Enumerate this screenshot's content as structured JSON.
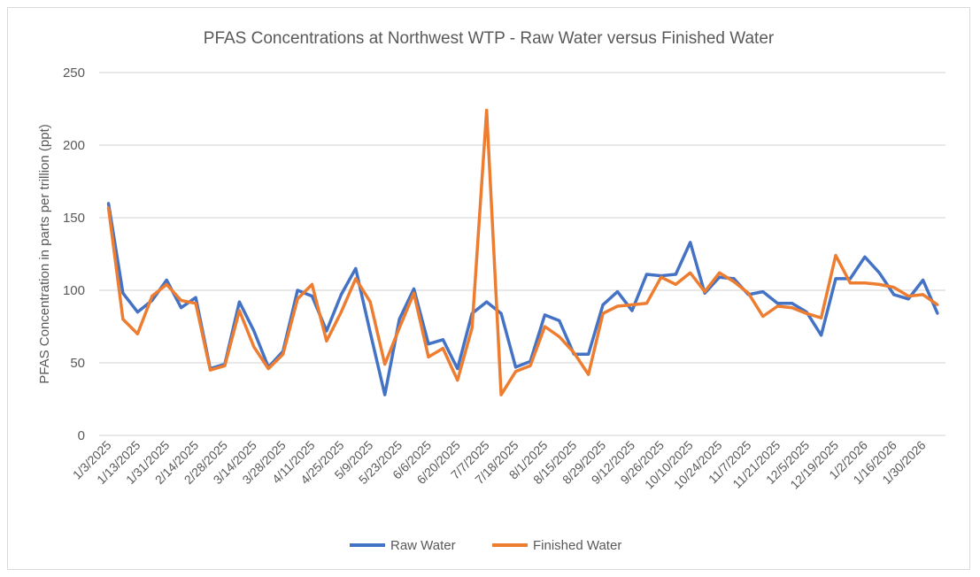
{
  "chart_data": {
    "type": "line",
    "title": "PFAS Concentrations at Northwest WTP - Raw Water versus Finished Water",
    "xlabel": "",
    "ylabel": "PFAS Concentration in parts per trillion (ppt)",
    "ylim": [
      0,
      250
    ],
    "yticks": [
      0,
      50,
      100,
      150,
      200,
      250
    ],
    "grid": true,
    "legend": "bottom",
    "x_tick_labels": [
      "1/3/2025",
      "1/13/2025",
      "1/31/2025",
      "2/14/2025",
      "2/28/2025",
      "3/14/2025",
      "3/28/2025",
      "4/11/2025",
      "4/25/2025",
      "5/9/2025",
      "5/23/2025",
      "6/6/2025",
      "6/20/2025",
      "7/7/2025",
      "7/18/2025",
      "8/1/2025",
      "8/15/2025",
      "8/29/2025",
      "9/12/2025",
      "9/26/2025",
      "10/10/2025",
      "10/24/2025",
      "11/7/2025",
      "11/21/2025",
      "12/5/2025",
      "12/19/2025",
      "1/2/2026",
      "1/16/2026",
      "1/30/2026"
    ],
    "series": [
      {
        "name": "Raw Water",
        "color": "#4472C4",
        "values": [
          160,
          98,
          85,
          93,
          107,
          88,
          95,
          46,
          49,
          92,
          72,
          47,
          58,
          100,
          96,
          72,
          97,
          115,
          71,
          28,
          80,
          101,
          63,
          66,
          46,
          84,
          92,
          84,
          47,
          51,
          83,
          79,
          56,
          56,
          90,
          99,
          86,
          111,
          110,
          111,
          133,
          98,
          109,
          108,
          97,
          99,
          91,
          91,
          85,
          69,
          108,
          108,
          123,
          112,
          97,
          94,
          107,
          84
        ]
      },
      {
        "name": "Finished Water",
        "color": "#ED7D31",
        "values": [
          157,
          80,
          70,
          96,
          104,
          93,
          91,
          45,
          48,
          86,
          61,
          46,
          56,
          94,
          104,
          65,
          85,
          108,
          92,
          49,
          74,
          98,
          54,
          60,
          38,
          74,
          224,
          28,
          44,
          48,
          75,
          68,
          57,
          42,
          84,
          89,
          90,
          91,
          109,
          104,
          112,
          99,
          112,
          106,
          98,
          82,
          89,
          88,
          84,
          81,
          124,
          105,
          105,
          104,
          102,
          96,
          97,
          90
        ]
      }
    ]
  }
}
